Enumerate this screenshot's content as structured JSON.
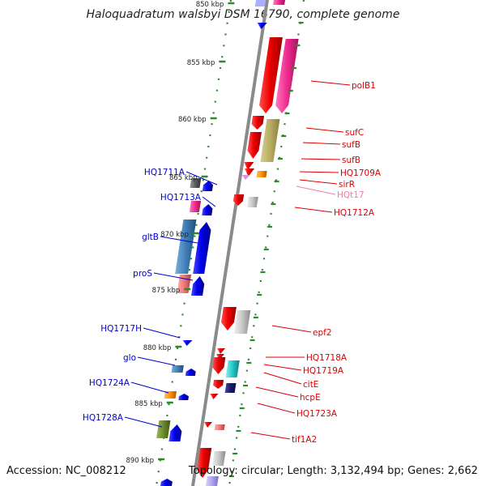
{
  "title": "Haloquadratum walsbyi DSM 16790, complete genome",
  "footer": {
    "accession": "Accession: NC_008212",
    "summary": "Topology: circular; Length: 3,132,494 bp; Genes: 2,662"
  },
  "ticks": [
    "850 kbp",
    "855 kbp",
    "860 kbp",
    "865 kbp",
    "870 kbp",
    "875 kbp",
    "880 kbp",
    "885 kbp",
    "890 kbp"
  ],
  "left_labels": [
    {
      "text": "HQ1711A",
      "color": "#0000cc"
    },
    {
      "text": "HQ1713A",
      "color": "#0000cc"
    },
    {
      "text": "gltB",
      "color": "#0000cc"
    },
    {
      "text": "proS",
      "color": "#0000cc"
    },
    {
      "text": "HQ1717H",
      "color": "#0000cc"
    },
    {
      "text": "glo",
      "color": "#0000cc"
    },
    {
      "text": "HQ1724A",
      "color": "#0000cc"
    },
    {
      "text": "HQ1728A",
      "color": "#0000cc"
    }
  ],
  "right_labels": [
    {
      "text": "polB1",
      "color": "#dd0000"
    },
    {
      "text": "sufC",
      "color": "#dd0000"
    },
    {
      "text": "sufB",
      "color": "#dd0000"
    },
    {
      "text": "sufB",
      "color": "#dd0000"
    },
    {
      "text": "HQ1709A",
      "color": "#dd0000"
    },
    {
      "text": "sirR",
      "color": "#dd0000"
    },
    {
      "text": "HQt17",
      "color": "#f07aa8"
    },
    {
      "text": "HQ1712A",
      "color": "#dd0000"
    },
    {
      "text": "epf2",
      "color": "#dd0000"
    },
    {
      "text": "HQ1718A",
      "color": "#dd0000"
    },
    {
      "text": "HQ1719A",
      "color": "#dd0000"
    },
    {
      "text": "citE",
      "color": "#dd0000"
    },
    {
      "text": "hcpE",
      "color": "#dd0000"
    },
    {
      "text": "HQ1723A",
      "color": "#dd0000"
    },
    {
      "text": "tif1A2",
      "color": "#dd0000"
    }
  ],
  "colors": {
    "backbone": "#8a8a8a",
    "ticks": "#2a8a2a",
    "forward_strand": "#0000ee",
    "reverse_strand": "#ee0000"
  }
}
